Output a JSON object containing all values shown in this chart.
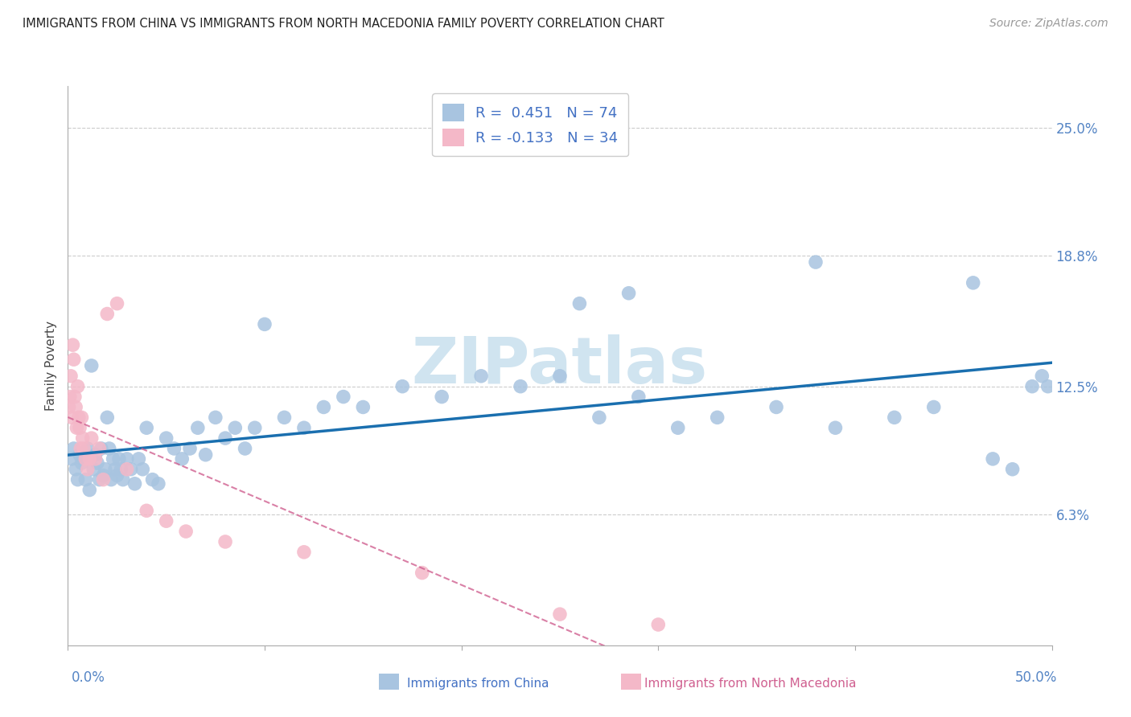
{
  "title": "IMMIGRANTS FROM CHINA VS IMMIGRANTS FROM NORTH MACEDONIA FAMILY POVERTY CORRELATION CHART",
  "source": "Source: ZipAtlas.com",
  "ylabel": "Family Poverty",
  "yticks": [
    6.3,
    12.5,
    18.8,
    25.0
  ],
  "ytick_labels": [
    "6.3%",
    "12.5%",
    "18.8%",
    "25.0%"
  ],
  "xlim": [
    0.0,
    50.0
  ],
  "ylim": [
    0.0,
    27.0
  ],
  "china_R": 0.451,
  "china_N": 74,
  "macedonia_R": -0.133,
  "macedonia_N": 34,
  "china_color": "#a8c4e0",
  "china_line_color": "#1a6faf",
  "macedonia_color": "#f4b8c8",
  "macedonia_line_color": "#d06090",
  "background_color": "#ffffff",
  "watermark_text": "ZIPatlas",
  "watermark_color": "#d0e4f0",
  "legend_text_color": "#4472c4",
  "ytick_color": "#5585c5",
  "xtick_left_label": "0.0%",
  "xtick_right_label": "50.0%",
  "xtick_color": "#5585c5",
  "bottom_legend_china": "Immigrants from China",
  "bottom_legend_mac": "Immigrants from North Macedonia",
  "china_x": [
    0.2,
    0.3,
    0.4,
    0.5,
    0.6,
    0.7,
    0.8,
    0.9,
    1.0,
    1.1,
    1.2,
    1.3,
    1.4,
    1.5,
    1.6,
    1.7,
    1.8,
    1.9,
    2.0,
    2.1,
    2.2,
    2.3,
    2.4,
    2.5,
    2.6,
    2.7,
    2.8,
    3.0,
    3.2,
    3.4,
    3.6,
    3.8,
    4.0,
    4.3,
    4.6,
    5.0,
    5.4,
    5.8,
    6.2,
    6.6,
    7.0,
    7.5,
    8.0,
    8.5,
    9.0,
    9.5,
    10.0,
    11.0,
    12.0,
    13.0,
    14.0,
    15.0,
    17.0,
    19.0,
    21.0,
    23.0,
    25.0,
    27.0,
    29.0,
    31.0,
    33.0,
    36.0,
    39.0,
    42.0,
    44.0,
    46.0,
    47.0,
    48.0,
    49.0,
    49.5,
    26.0,
    28.5,
    38.0,
    49.8
  ],
  "china_y": [
    9.0,
    9.5,
    8.5,
    8.0,
    9.2,
    8.8,
    9.0,
    8.0,
    9.5,
    7.5,
    13.5,
    8.5,
    9.2,
    8.8,
    8.0,
    9.5,
    8.2,
    8.5,
    11.0,
    9.5,
    8.0,
    9.0,
    8.5,
    8.2,
    9.0,
    8.5,
    8.0,
    9.0,
    8.5,
    7.8,
    9.0,
    8.5,
    10.5,
    8.0,
    7.8,
    10.0,
    9.5,
    9.0,
    9.5,
    10.5,
    9.2,
    11.0,
    10.0,
    10.5,
    9.5,
    10.5,
    15.5,
    11.0,
    10.5,
    11.5,
    12.0,
    11.5,
    12.5,
    12.0,
    13.0,
    12.5,
    13.0,
    11.0,
    12.0,
    10.5,
    11.0,
    11.5,
    10.5,
    11.0,
    11.5,
    17.5,
    9.0,
    8.5,
    12.5,
    13.0,
    16.5,
    17.0,
    18.5,
    12.5
  ],
  "macedonia_x": [
    0.05,
    0.1,
    0.15,
    0.2,
    0.25,
    0.3,
    0.35,
    0.4,
    0.45,
    0.5,
    0.55,
    0.6,
    0.65,
    0.7,
    0.75,
    0.8,
    0.9,
    1.0,
    1.1,
    1.2,
    1.4,
    1.6,
    1.8,
    2.0,
    2.5,
    3.0,
    4.0,
    5.0,
    6.0,
    8.0,
    12.0,
    18.0,
    25.0,
    30.0
  ],
  "macedonia_y": [
    11.5,
    12.0,
    13.0,
    11.0,
    14.5,
    13.8,
    12.0,
    11.5,
    10.5,
    12.5,
    11.0,
    10.5,
    9.5,
    11.0,
    10.0,
    9.5,
    9.0,
    8.5,
    9.0,
    10.0,
    9.0,
    9.5,
    8.0,
    16.0,
    16.5,
    8.5,
    6.5,
    6.0,
    5.5,
    5.0,
    4.5,
    3.5,
    1.5,
    1.0
  ]
}
